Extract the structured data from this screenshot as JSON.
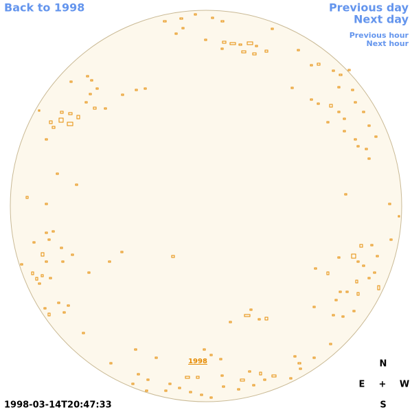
{
  "nav": {
    "back": "Back to 1998",
    "previous_day": "Previous day",
    "next_day": "Next day",
    "previous_hour": "Previous hour",
    "next_hour": "Next hour"
  },
  "disk": {
    "year_label": "1998"
  },
  "compass": {
    "north": "N",
    "east": "E",
    "center": "+",
    "west": "W",
    "south": "S"
  },
  "timestamp": "1998-03-14T20:47:33"
}
